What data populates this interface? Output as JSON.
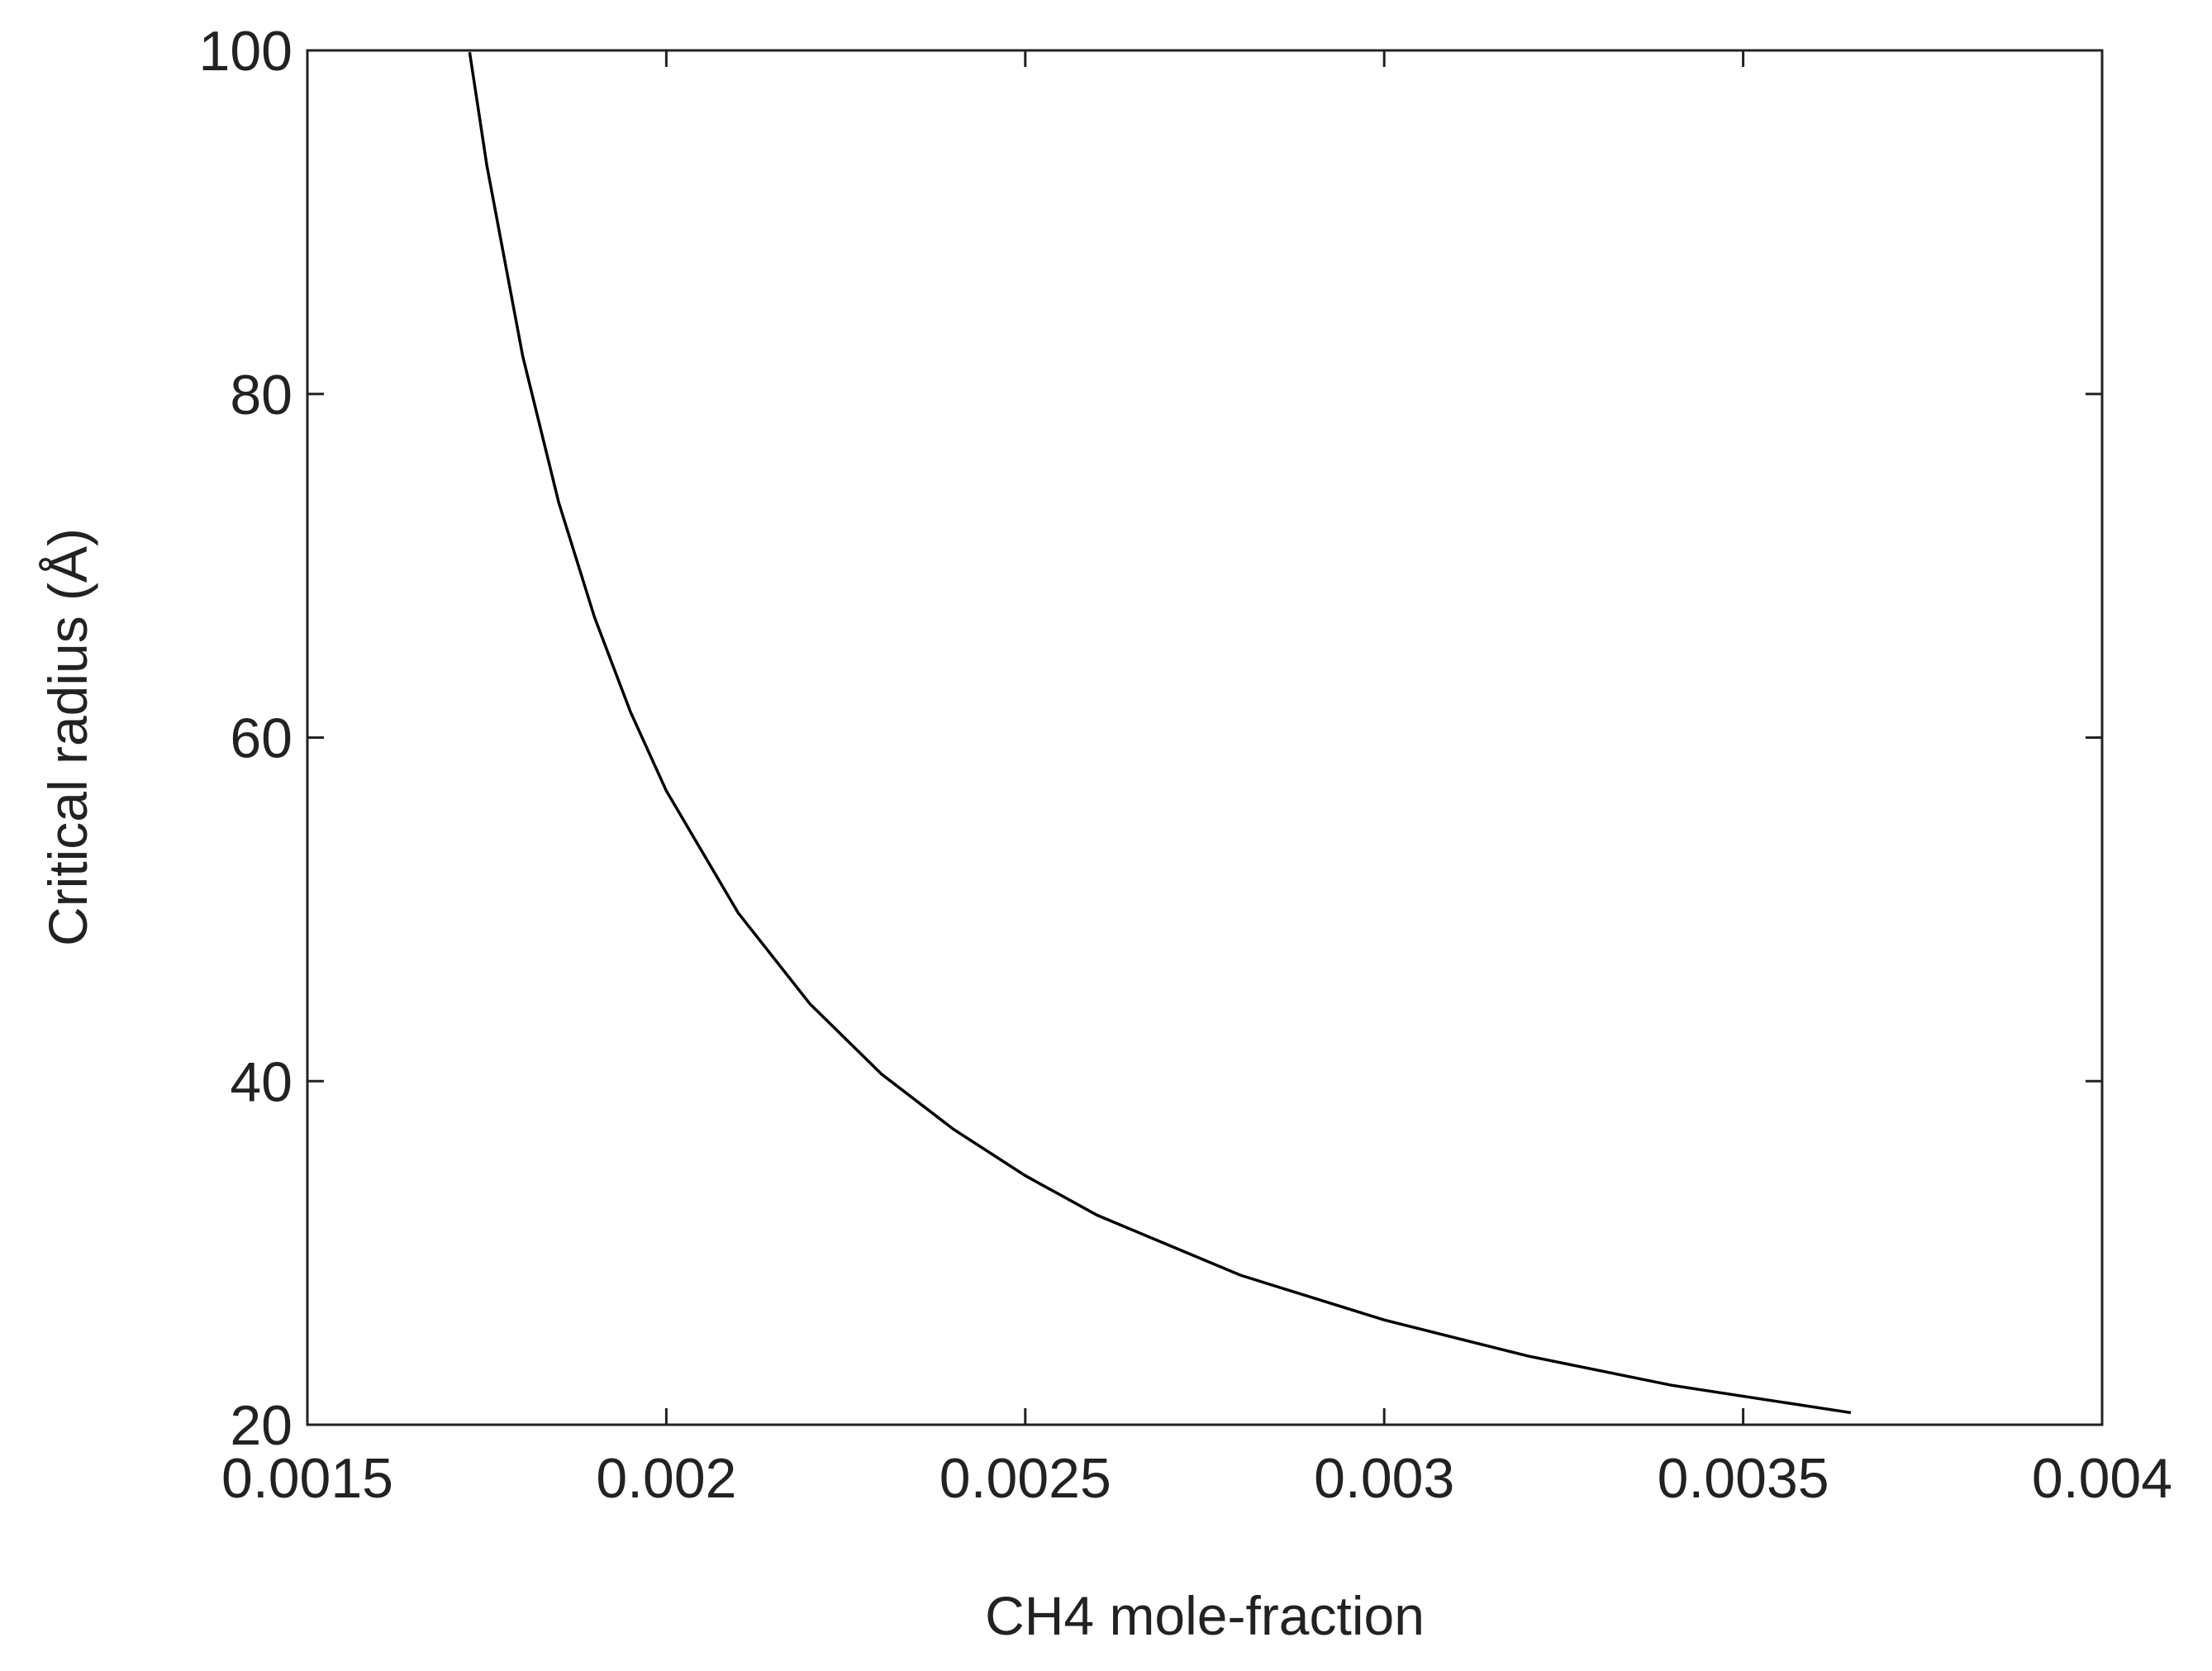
{
  "chart_data": {
    "type": "line",
    "x_label": "CH4 mole-fraction",
    "y_label": "Critical radius (Å)",
    "xlim": [
      0.0015,
      0.004
    ],
    "ylim": [
      20,
      100
    ],
    "xticks": [
      0.0015,
      0.002,
      0.0025,
      0.003,
      0.0035,
      0.004
    ],
    "yticks": [
      20,
      40,
      60,
      80,
      100
    ],
    "grid": false,
    "x": [
      0.001726,
      0.00175,
      0.0018,
      0.00185,
      0.0019,
      0.00195,
      0.002,
      0.0021,
      0.0022,
      0.0023,
      0.0024,
      0.0025,
      0.0026,
      0.0028,
      0.003,
      0.0032,
      0.0034,
      0.00365
    ],
    "series": [
      {
        "color": "#000000",
        "values": [
          99.9,
          93.3,
          82.2,
          73.7,
          67.0,
          61.5,
          56.9,
          49.8,
          44.5,
          40.4,
          37.2,
          34.5,
          32.2,
          28.7,
          26.1,
          24.0,
          22.3,
          20.7
        ]
      }
    ]
  }
}
